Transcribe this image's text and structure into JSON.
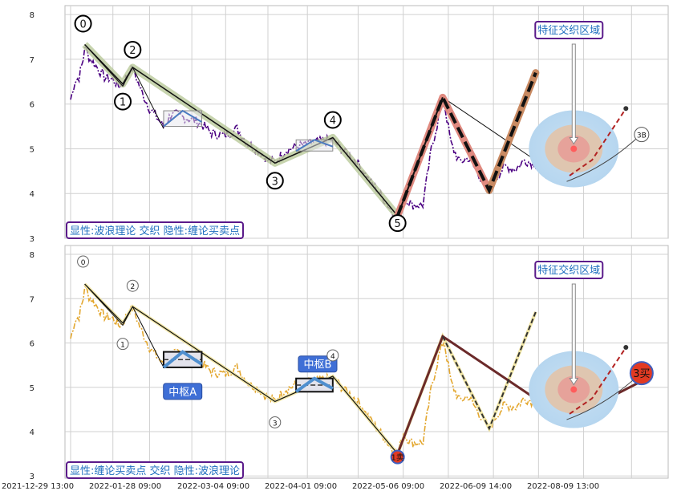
{
  "chart_data": [
    {
      "panel": "top",
      "type": "line",
      "caption": "显性:波浪理论 交织 隐性:缠论买卖点",
      "region_label": "特征交织区域",
      "ylim": [
        3,
        8.2
      ],
      "yticks": [
        3,
        4,
        5,
        6,
        7,
        8
      ],
      "x_tick_labels": [],
      "grid": true,
      "price_color": "#4b0082",
      "wave_points": [
        {
          "label": "0",
          "x": 10,
          "y": 7.33
        },
        {
          "label": "1",
          "x": 37,
          "y": 6.45
        },
        {
          "label": "2",
          "x": 44,
          "y": 6.82
        },
        {
          "label": "3",
          "x": 145,
          "y": 4.68
        },
        {
          "label": "4",
          "x": 186,
          "y": 5.25
        },
        {
          "label": "5",
          "x": 232,
          "y": 3.5
        }
      ],
      "projection": [
        {
          "x": 232,
          "y": 3.5
        },
        {
          "x": 264,
          "y": 6.15
        },
        {
          "x": 297,
          "y": 4.07
        },
        {
          "x": 330,
          "y": 6.7
        }
      ],
      "small_boxes": [
        {
          "x0": 66,
          "x1": 93,
          "y0": 5.5,
          "y1": 5.85
        },
        {
          "x0": 160,
          "x1": 186,
          "y0": 4.95,
          "y1": 5.2
        }
      ],
      "buy_marker": {
        "label": "3B",
        "x": 404,
        "y": 5.32
      }
    },
    {
      "panel": "bottom",
      "type": "line",
      "caption": "显性:缠论买卖点 交织 隐性:波浪理论",
      "region_label": "特征交织区域",
      "ylim": [
        2.95,
        8.2
      ],
      "yticks": [
        3,
        4,
        5,
        6,
        7,
        8
      ],
      "x_tick_labels": [
        "2021-12-29 13:00",
        "2022-01-28 09:00",
        "2022-03-04 09:00",
        "2022-04-01 09:00",
        "2022-05-06 09:00",
        "2022-06-09 14:00",
        "2022-08-09 13:00"
      ],
      "grid": true,
      "price_color": "#e3a72f",
      "wave_points": [
        {
          "label": "0",
          "x": 10,
          "y": 7.33
        },
        {
          "label": "1",
          "x": 37,
          "y": 6.45
        },
        {
          "label": "2",
          "x": 44,
          "y": 6.82
        },
        {
          "label": "3",
          "x": 145,
          "y": 4.68
        },
        {
          "label": "4",
          "x": 186,
          "y": 5.25
        },
        {
          "label": "5",
          "x": 232,
          "y": 3.5
        }
      ],
      "zhongshu": [
        {
          "label": "中枢A",
          "x0": 66,
          "x1": 93,
          "y0": 5.45,
          "y1": 5.8
        },
        {
          "label": "中枢B",
          "x0": 160,
          "x1": 186,
          "y0": 4.9,
          "y1": 5.2
        }
      ],
      "sell_marker_label": "1卖",
      "buy_marker": {
        "label": "3买",
        "x": 404,
        "y": 5.32
      }
    }
  ]
}
